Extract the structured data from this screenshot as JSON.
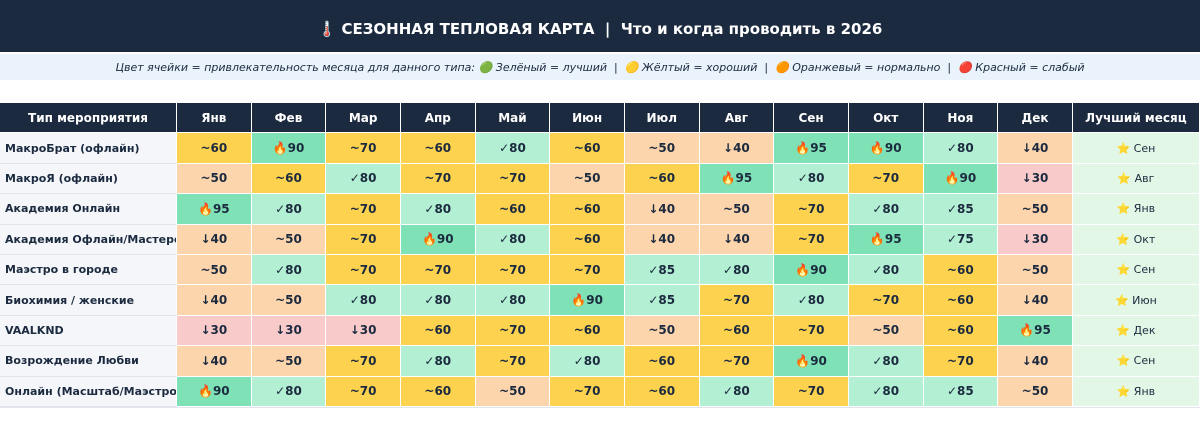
{
  "title": "🌡️ СЕЗОННАЯ ТЕПЛОВАЯ КАРТА  |  Что и когда проводить в 2026",
  "legend": "Цвет ячейки = привлекательность месяца для данного типа: 🟢 Зелёный = лучший  |  🟡 Жёлтый = хороший  |  🟠 Оранжевый = нормально  |  🔴 Красный = слабый",
  "table": {
    "header": [
      "Тип мероприятия",
      "Янв",
      "Фев",
      "Мар",
      "Апр",
      "Май",
      "Июн",
      "Июл",
      "Авг",
      "Сен",
      "Окт",
      "Ноя",
      "Дек",
      "Лучший месяц"
    ],
    "best_color": "#e3f7e6",
    "rows": [
      {
        "name": "МакроБрат (офлайн)",
        "cells": [
          "~60",
          "🔥90",
          "~70",
          "~60",
          "✓80",
          "~60",
          "~50",
          "↓40",
          "🔥95",
          "🔥90",
          "✓80",
          "↓40"
        ],
        "colors": [
          "#fdd24f",
          "#7fe2b6",
          "#fdd24f",
          "#fdd24f",
          "#b3f0d3",
          "#fdd24f",
          "#fdd5ac",
          "#fdd5ac",
          "#7fe2b6",
          "#7fe2b6",
          "#b3f0d3",
          "#fdd5ac"
        ],
        "best": "⭐ Сен"
      },
      {
        "name": "МакроЯ (офлайн)",
        "cells": [
          "~50",
          "~60",
          "✓80",
          "~70",
          "~70",
          "~50",
          "~60",
          "🔥95",
          "✓80",
          "~70",
          "🔥90",
          "↓30"
        ],
        "colors": [
          "#fdd5ac",
          "#fdd24f",
          "#b3f0d3",
          "#fdd24f",
          "#fdd24f",
          "#fdd5ac",
          "#fdd24f",
          "#7fe2b6",
          "#b3f0d3",
          "#fdd24f",
          "#7fe2b6",
          "#f9caca"
        ],
        "best": "⭐ Авг"
      },
      {
        "name": "Академия Онлайн",
        "cells": [
          "🔥95",
          "✓80",
          "~70",
          "✓80",
          "~60",
          "~60",
          "↓40",
          "~50",
          "~70",
          "✓80",
          "✓85",
          "~50"
        ],
        "colors": [
          "#7fe2b6",
          "#b3f0d3",
          "#fdd24f",
          "#b3f0d3",
          "#fdd24f",
          "#fdd24f",
          "#fdd5ac",
          "#fdd5ac",
          "#fdd24f",
          "#b3f0d3",
          "#b3f0d3",
          "#fdd5ac"
        ],
        "best": "⭐ Янв"
      },
      {
        "name": "Академия Офлайн/Мастеров",
        "cells": [
          "↓40",
          "~50",
          "~70",
          "🔥90",
          "✓80",
          "~60",
          "↓40",
          "↓40",
          "~70",
          "🔥95",
          "✓75",
          "↓30"
        ],
        "colors": [
          "#fdd5ac",
          "#fdd5ac",
          "#fdd24f",
          "#7fe2b6",
          "#b3f0d3",
          "#fdd24f",
          "#fdd5ac",
          "#fdd5ac",
          "#fdd24f",
          "#7fe2b6",
          "#b3f0d3",
          "#f9caca"
        ],
        "best": "⭐ Окт"
      },
      {
        "name": "Маэстро в городе",
        "cells": [
          "~50",
          "✓80",
          "~70",
          "~70",
          "~70",
          "~70",
          "✓85",
          "✓80",
          "🔥90",
          "✓80",
          "~60",
          "~50"
        ],
        "colors": [
          "#fdd5ac",
          "#b3f0d3",
          "#fdd24f",
          "#fdd24f",
          "#fdd24f",
          "#fdd24f",
          "#b3f0d3",
          "#b3f0d3",
          "#7fe2b6",
          "#b3f0d3",
          "#fdd24f",
          "#fdd5ac"
        ],
        "best": "⭐ Сен"
      },
      {
        "name": "Биохимия / женские",
        "cells": [
          "↓40",
          "~50",
          "✓80",
          "✓80",
          "✓80",
          "🔥90",
          "✓85",
          "~70",
          "✓80",
          "~70",
          "~60",
          "↓40"
        ],
        "colors": [
          "#fdd5ac",
          "#fdd5ac",
          "#b3f0d3",
          "#b3f0d3",
          "#b3f0d3",
          "#7fe2b6",
          "#b3f0d3",
          "#fdd24f",
          "#b3f0d3",
          "#fdd24f",
          "#fdd24f",
          "#fdd5ac"
        ],
        "best": "⭐ Июн"
      },
      {
        "name": "VAALKND",
        "cells": [
          "↓30",
          "↓30",
          "↓30",
          "~60",
          "~70",
          "~60",
          "~50",
          "~60",
          "~70",
          "~50",
          "~60",
          "🔥95"
        ],
        "colors": [
          "#f9caca",
          "#f9caca",
          "#f9caca",
          "#fdd24f",
          "#fdd24f",
          "#fdd24f",
          "#fdd5ac",
          "#fdd24f",
          "#fdd24f",
          "#fdd5ac",
          "#fdd24f",
          "#7fe2b6"
        ],
        "best": "⭐ Дек"
      },
      {
        "name": "Возрождение Любви",
        "cells": [
          "↓40",
          "~50",
          "~70",
          "✓80",
          "~70",
          "✓80",
          "~60",
          "~70",
          "🔥90",
          "✓80",
          "~70",
          "↓40"
        ],
        "colors": [
          "#fdd5ac",
          "#fdd5ac",
          "#fdd24f",
          "#b3f0d3",
          "#fdd24f",
          "#b3f0d3",
          "#fdd24f",
          "#fdd24f",
          "#7fe2b6",
          "#b3f0d3",
          "#fdd24f",
          "#fdd5ac"
        ],
        "best": "⭐ Сен"
      },
      {
        "name": "Онлайн (Масштаб/Маэстро)",
        "cells": [
          "🔥90",
          "✓80",
          "~70",
          "~60",
          "~50",
          "~70",
          "~60",
          "✓80",
          "~70",
          "✓80",
          "✓85",
          "~50"
        ],
        "colors": [
          "#7fe2b6",
          "#b3f0d3",
          "#fdd24f",
          "#fdd24f",
          "#fdd5ac",
          "#fdd24f",
          "#fdd24f",
          "#b3f0d3",
          "#fdd24f",
          "#b3f0d3",
          "#b3f0d3",
          "#fdd5ac"
        ],
        "best": "⭐ Янв"
      }
    ]
  }
}
